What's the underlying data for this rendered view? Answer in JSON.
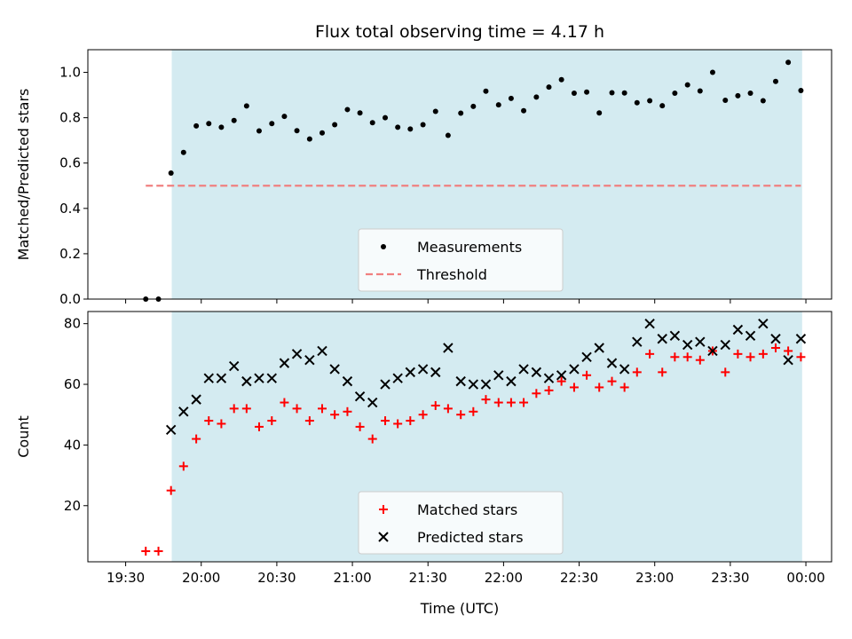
{
  "chart_data": [
    {
      "type": "scatter",
      "title": "Flux total observing time = 4.17 h",
      "ylabel": "Matched/Predicted stars",
      "xlabel": "",
      "xlim": [
        19.25,
        24.17
      ],
      "ylim": [
        0,
        1.1
      ],
      "yticks": [
        "0.0",
        "0.2",
        "0.4",
        "0.6",
        "0.8",
        "1.0"
      ],
      "ytick_values": [
        0,
        0.2,
        0.4,
        0.6,
        0.8,
        1.0
      ],
      "shaded_region": {
        "x0": 19.805,
        "x1": 23.975,
        "color": "#d4ebf1"
      },
      "legend_placement": "lower-center",
      "series": [
        {
          "name": "Measurements",
          "marker": "dot",
          "color": "#000000",
          "x": [
            19.633,
            19.717,
            19.8,
            19.883,
            19.967,
            20.05,
            20.133,
            20.217,
            20.3,
            20.383,
            20.467,
            20.55,
            20.633,
            20.717,
            20.8,
            20.883,
            20.967,
            21.05,
            21.133,
            21.217,
            21.3,
            21.383,
            21.467,
            21.55,
            21.633,
            21.717,
            21.8,
            21.883,
            21.967,
            22.05,
            22.133,
            22.217,
            22.3,
            22.383,
            22.467,
            22.55,
            22.633,
            22.717,
            22.8,
            22.883,
            22.967,
            23.05,
            23.133,
            23.217,
            23.3,
            23.383,
            23.467,
            23.55,
            23.633,
            23.717,
            23.8,
            23.883,
            23.967
          ],
          "y": [
            0.0,
            0.0,
            0.556,
            0.647,
            0.764,
            0.774,
            0.758,
            0.788,
            0.852,
            0.742,
            0.774,
            0.806,
            0.743,
            0.706,
            0.733,
            0.769,
            0.836,
            0.821,
            0.778,
            0.8,
            0.758,
            0.75,
            0.769,
            0.828,
            0.722,
            0.82,
            0.85,
            0.917,
            0.857,
            0.885,
            0.831,
            0.891,
            0.935,
            0.968,
            0.908,
            0.913,
            0.821,
            0.91,
            0.909,
            0.866,
            0.875,
            0.853,
            0.908,
            0.945,
            0.918,
            1.0,
            0.877,
            0.897,
            0.908,
            0.875,
            0.96,
            1.044,
            0.92
          ]
        },
        {
          "name": "Threshold",
          "marker": "dashed-line",
          "color": "#f08080",
          "x": [
            19.633,
            23.967
          ],
          "y": [
            0.5,
            0.5
          ]
        }
      ]
    },
    {
      "type": "scatter",
      "title": "",
      "ylabel": "Count",
      "xlabel": "Time (UTC)",
      "xlim": [
        19.25,
        24.17
      ],
      "ylim": [
        1.5,
        84
      ],
      "yticks": [
        "20",
        "40",
        "60",
        "80"
      ],
      "ytick_values": [
        20,
        40,
        60,
        80
      ],
      "xticks": [
        "19:30",
        "20:00",
        "20:30",
        "21:00",
        "21:30",
        "22:00",
        "22:30",
        "23:00",
        "23:30",
        "00:00"
      ],
      "xtick_values": [
        19.5,
        20.0,
        20.5,
        21.0,
        21.5,
        22.0,
        22.5,
        23.0,
        23.5,
        24.0
      ],
      "shaded_region": {
        "x0": 19.805,
        "x1": 23.975,
        "color": "#d4ebf1"
      },
      "legend_placement": "lower-center",
      "series": [
        {
          "name": "Matched stars",
          "marker": "plus",
          "color": "#ff0000",
          "x": [
            19.633,
            19.717,
            19.8,
            19.883,
            19.967,
            20.05,
            20.133,
            20.217,
            20.3,
            20.383,
            20.467,
            20.55,
            20.633,
            20.717,
            20.8,
            20.883,
            20.967,
            21.05,
            21.133,
            21.217,
            21.3,
            21.383,
            21.467,
            21.55,
            21.633,
            21.717,
            21.8,
            21.883,
            21.967,
            22.05,
            22.133,
            22.217,
            22.3,
            22.383,
            22.467,
            22.55,
            22.633,
            22.717,
            22.8,
            22.883,
            22.967,
            23.05,
            23.133,
            23.217,
            23.3,
            23.383,
            23.467,
            23.55,
            23.633,
            23.717,
            23.8,
            23.883,
            23.967
          ],
          "y": [
            5,
            5,
            25,
            33,
            42,
            48,
            47,
            52,
            52,
            46,
            48,
            54,
            52,
            48,
            52,
            50,
            51,
            46,
            42,
            48,
            47,
            48,
            50,
            53,
            52,
            50,
            51,
            55,
            54,
            54,
            54,
            57,
            58,
            61,
            59,
            63,
            59,
            61,
            59,
            64,
            70,
            64,
            69,
            69,
            68,
            71,
            64,
            70,
            69,
            70,
            72,
            71,
            69
          ]
        },
        {
          "name": "Predicted stars",
          "marker": "x",
          "color": "#000000",
          "x": [
            19.8,
            19.883,
            19.967,
            20.05,
            20.133,
            20.217,
            20.3,
            20.383,
            20.467,
            20.55,
            20.633,
            20.717,
            20.8,
            20.883,
            20.967,
            21.05,
            21.133,
            21.217,
            21.3,
            21.383,
            21.467,
            21.55,
            21.633,
            21.717,
            21.8,
            21.883,
            21.967,
            22.05,
            22.133,
            22.217,
            22.3,
            22.383,
            22.467,
            22.55,
            22.633,
            22.717,
            22.8,
            22.883,
            22.967,
            23.05,
            23.133,
            23.217,
            23.3,
            23.383,
            23.467,
            23.55,
            23.633,
            23.717,
            23.8,
            23.883,
            23.967
          ],
          "y": [
            45,
            51,
            55,
            62,
            62,
            66,
            61,
            62,
            62,
            67,
            70,
            68,
            71,
            65,
            61,
            56,
            54,
            60,
            62,
            64,
            65,
            64,
            72,
            61,
            60,
            60,
            63,
            61,
            65,
            64,
            62,
            63,
            65,
            69,
            72,
            67,
            65,
            74,
            80,
            75,
            76,
            73,
            74,
            71,
            73,
            78,
            76,
            80,
            75,
            68,
            75
          ]
        }
      ]
    }
  ]
}
